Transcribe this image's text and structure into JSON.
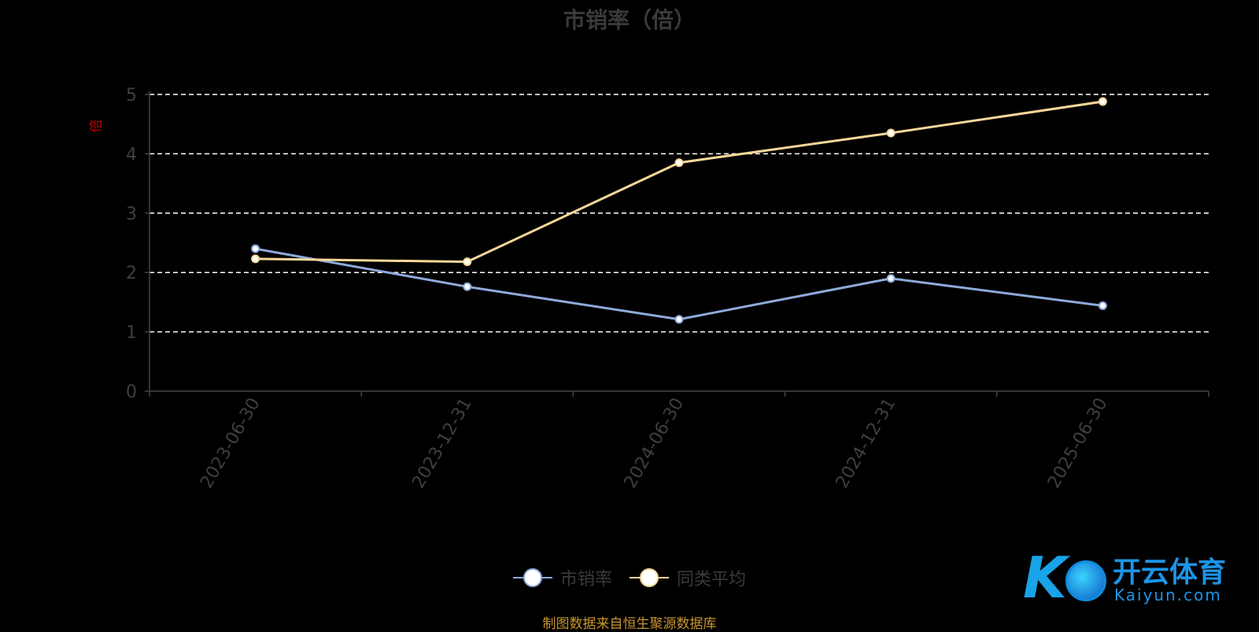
{
  "chart_data": {
    "type": "line",
    "title": "市销率（倍）",
    "ylabel": "倍",
    "xlabel": "",
    "categories": [
      "2023-06-30",
      "2023-12-31",
      "2024-06-30",
      "2024-12-31",
      "2025-06-30"
    ],
    "yticks": [
      0,
      1,
      2,
      3,
      4,
      5
    ],
    "ylim": [
      0,
      5
    ],
    "grid": true,
    "legend_position": "bottom",
    "series": [
      {
        "name": "市销率",
        "color": "#8eaadb",
        "values": [
          2.4,
          1.76,
          1.21,
          1.9,
          1.44
        ]
      },
      {
        "name": "同类平均",
        "color": "#f7d799",
        "values": [
          2.23,
          2.18,
          3.85,
          4.35,
          4.88
        ]
      }
    ]
  },
  "legend": {
    "items": [
      "市销率",
      "同类平均"
    ]
  },
  "source": "制图数据来自恒生聚源数据库",
  "logo": {
    "text_cn": "开云体育",
    "text_en": "Kaiyun.com",
    "mark": "K"
  }
}
